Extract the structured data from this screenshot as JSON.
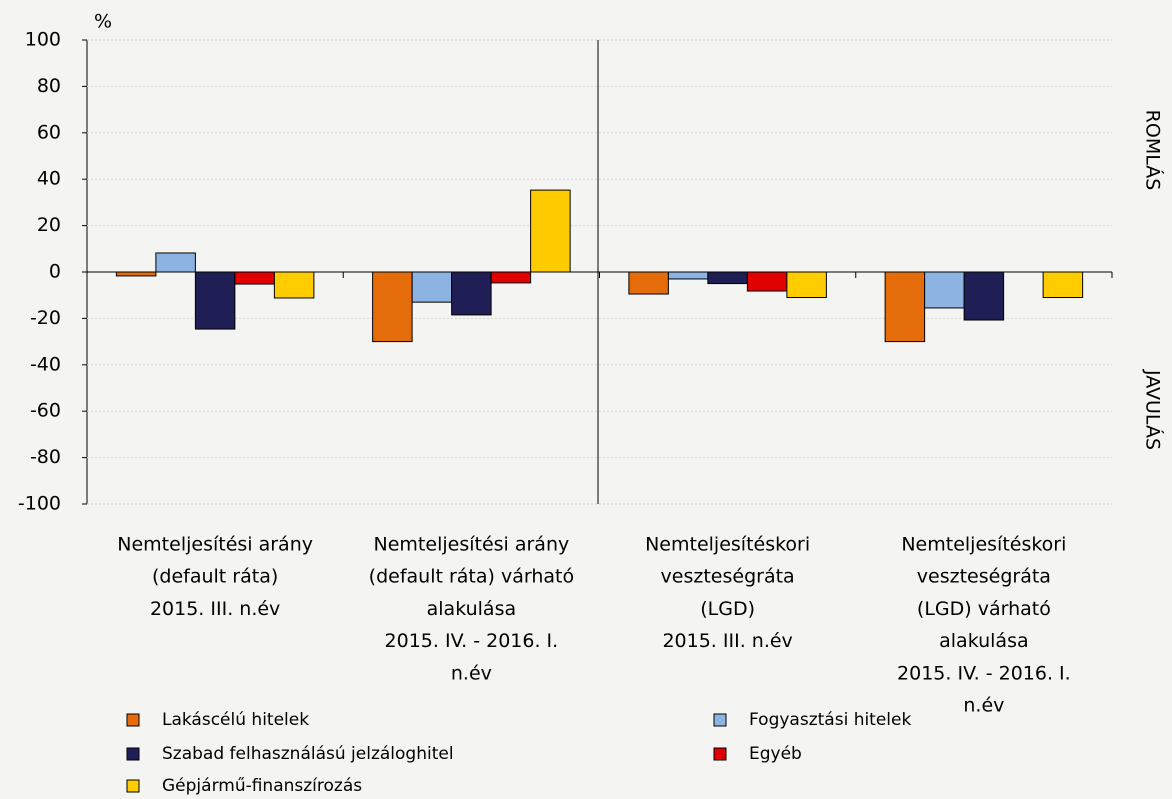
{
  "chart_data": {
    "type": "bar",
    "y_label": "%",
    "annotations": [
      "ROMLÁS",
      "JAVULÁS"
    ],
    "categories": [
      [
        "Nemteljesítési arány",
        "(default ráta)",
        "2015. III. n.év"
      ],
      [
        "Nemteljesítési arány",
        "(default ráta) várható",
        "alakulása",
        "2015. IV. - 2016. I.",
        "n.év"
      ],
      [
        "Nemteljesítéskori",
        "veszteségráta",
        "(LGD)",
        "2015. III. n.év"
      ],
      [
        "Nemteljesítéskori",
        "veszteségráta",
        "(LGD) várható",
        "alakulása",
        "2015. IV. - 2016. I.",
        "n.év"
      ]
    ],
    "series": [
      {
        "name": "Lakáscélú hitelek",
        "color": "#E46C0A",
        "values": [
          -1.7,
          -30,
          -9.5,
          -30
        ]
      },
      {
        "name": "Fogyasztási hitelek",
        "color": "#8DB3E2",
        "values": [
          8.2,
          -13,
          -3,
          -15.5
        ]
      },
      {
        "name": "Szabad felhasználású jelzáloghitel",
        "color": "#1F1F55",
        "values": [
          -24.6,
          -18.5,
          -5,
          -20.7
        ]
      },
      {
        "name": "Egyéb",
        "color": "#E00000",
        "values": [
          -5.2,
          -4.7,
          -8.2,
          0
        ]
      },
      {
        "name": "Gépjármű-finanszírozás",
        "color": "#FFCC00",
        "values": [
          -11.2,
          35.3,
          -11,
          -11
        ]
      }
    ],
    "ylim": [
      -100,
      100
    ],
    "yticks": [
      -100,
      -80,
      -60,
      -40,
      -20,
      0,
      20,
      40,
      60,
      80,
      100
    ],
    "grid": true
  }
}
